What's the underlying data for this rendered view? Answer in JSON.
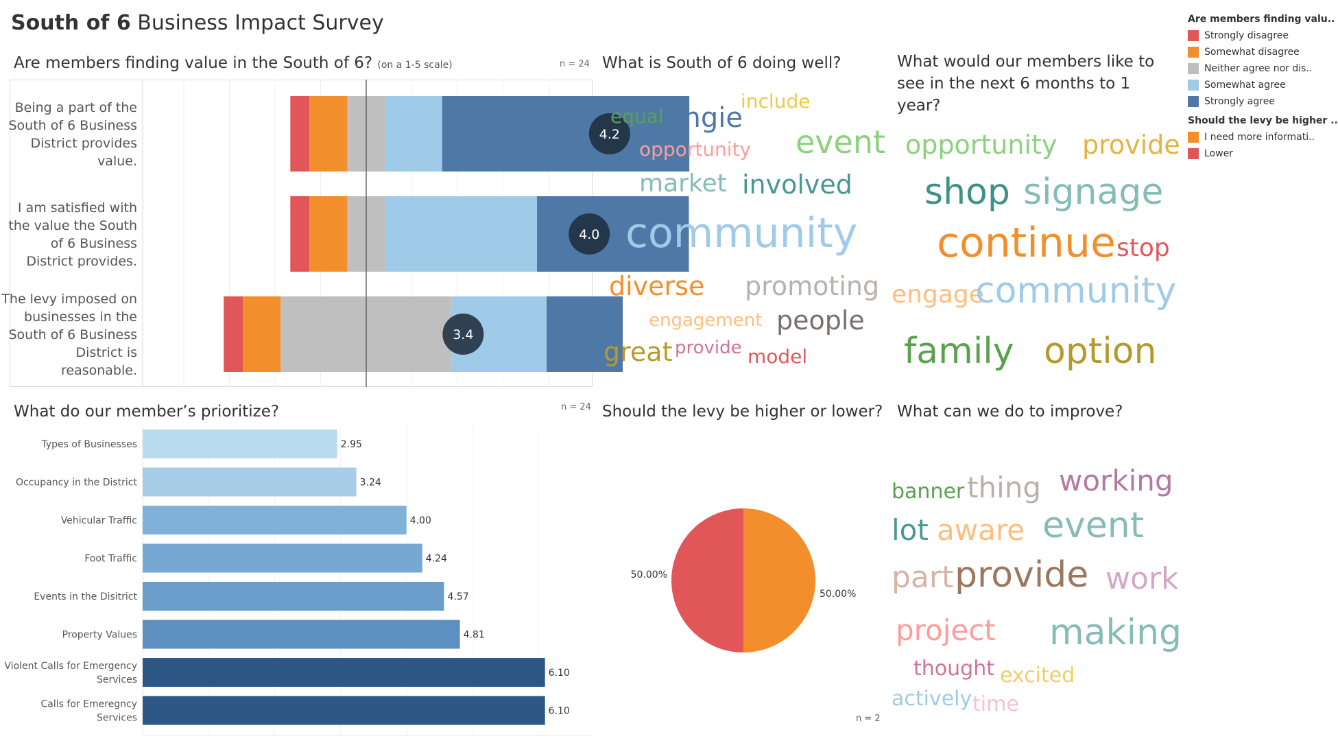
{
  "title": {
    "bold": "South of 6",
    "rest": " Business Impact Survey"
  },
  "colors": {
    "strongly_disagree": "#e15759",
    "somewhat_disagree": "#f28e2b",
    "neutral": "#bfbfbf",
    "somewhat_agree": "#a0cbe8",
    "strongly_agree": "#4e79a7",
    "avg_circle": "#1f2d3d"
  },
  "panels": {
    "value": {
      "title": "Are members finding value in the South of 6?",
      "subtitle": "(on a 1-5 scale)",
      "n": "n = 24"
    },
    "doing_well": {
      "title": "What is South of 6 doing well?"
    },
    "next_year": {
      "title": "What would our members like to see in the next 6 months to 1 year?"
    },
    "prioritize": {
      "title": "What do our member’s prioritize?",
      "n": "n = 24"
    },
    "levy": {
      "title": "Should the levy be higher or lower?",
      "n": "n = 2"
    },
    "improve": {
      "title": "What can we do to improve?"
    }
  },
  "legend": {
    "title1": "Are members finding valu..",
    "items1": [
      {
        "label": "Strongly disagree",
        "color": "#e15759"
      },
      {
        "label": "Somewhat disagree",
        "color": "#f28e2b"
      },
      {
        "label": "Neither agree nor dis..",
        "color": "#bfbfbf"
      },
      {
        "label": "Somewhat agree",
        "color": "#a0cbe8"
      },
      {
        "label": "Strongly agree",
        "color": "#4e79a7"
      }
    ],
    "title2": "Should the levy be higher ..",
    "items2": [
      {
        "label": "I need more informati..",
        "color": "#f28e2b"
      },
      {
        "label": "Lower",
        "color": "#e15759"
      }
    ]
  },
  "chart_data": [
    {
      "type": "bar",
      "subtype": "diverging-stacked",
      "title": "Are members finding value in the South of 6?",
      "categories": [
        "Being a part of the South of 6 Business District provides value.",
        "I am satisfied with the value the South of 6 Business District provides.",
        "The levy imposed on businesses in the South of 6 Business District is reasonable."
      ],
      "series": [
        {
          "name": "Strongly disagree",
          "values": [
            4.2,
            4.2,
            4.2
          ]
        },
        {
          "name": "Somewhat disagree",
          "values": [
            8.3,
            8.3,
            8.3
          ]
        },
        {
          "name": "Neither agree nor dis..",
          "values": [
            8.3,
            8.3,
            37.5
          ]
        },
        {
          "name": "Somewhat agree",
          "values": [
            12.5,
            33.3,
            20.8
          ]
        },
        {
          "name": "Strongly agree",
          "values": [
            54.2,
            33.3,
            16.7
          ]
        }
      ],
      "averages": [
        "4.2",
        "4.0",
        "3.4"
      ]
    },
    {
      "type": "bar",
      "orientation": "horizontal",
      "title": "What do our member’s prioritize?",
      "categories": [
        "Types of Businesses",
        "Occupancy in the District",
        "Vehicular Traffic",
        "Foot Traffic",
        "Events in the Disitrict",
        "Property Values",
        "Violent Calls for Emergency Services",
        "Calls for Emeregncy Services"
      ],
      "values": [
        2.95,
        3.24,
        4.0,
        4.24,
        4.57,
        4.81,
        6.1,
        6.1
      ],
      "labels": [
        "2.95",
        "3.24",
        "4.00",
        "4.24",
        "4.57",
        "4.81",
        "6.10",
        "6.10"
      ],
      "colors": [
        "#b9dbf0",
        "#a7cde9",
        "#80b1d8",
        "#77a8d3",
        "#6a9dca",
        "#5d90c1",
        "#2d5886",
        "#2d5886"
      ],
      "xlim": [
        0,
        6.8
      ]
    },
    {
      "type": "pie",
      "title": "Should the levy be higher or lower?",
      "slices": [
        {
          "name": "I need more informati..",
          "value": 50,
          "label": "50.00%",
          "color": "#f28e2b"
        },
        {
          "name": "Lower",
          "value": 50,
          "label": "50.00%",
          "color": "#e15759"
        }
      ]
    }
  ],
  "clouds": {
    "doing_well": [
      {
        "w": "equal",
        "c": "#59a14f",
        "s": 28
      },
      {
        "w": "angie",
        "c": "#4e79a7",
        "s": 40
      },
      {
        "w": "include",
        "c": "#edc948",
        "s": 28
      },
      {
        "w": "opportunity",
        "c": "#ff9d9a",
        "s": 28
      },
      {
        "w": "event",
        "c": "#8cd17d",
        "s": 46
      },
      {
        "w": "market",
        "c": "#86bcb6",
        "s": 36
      },
      {
        "w": "involved",
        "c": "#499894",
        "s": 38
      },
      {
        "w": "community",
        "c": "#a0cbe8",
        "s": 60
      },
      {
        "w": "diverse",
        "c": "#f28e2b",
        "s": 38
      },
      {
        "w": "promoting",
        "c": "#bab0ac",
        "s": 38
      },
      {
        "w": "engagement",
        "c": "#ffbe7d",
        "s": 26
      },
      {
        "w": "people",
        "c": "#79706e",
        "s": 38
      },
      {
        "w": "great",
        "c": "#b6992d",
        "s": 38
      },
      {
        "w": "provide",
        "c": "#d37295",
        "s": 26
      },
      {
        "w": "model",
        "c": "#e15759",
        "s": 28
      }
    ],
    "next_year": [
      {
        "w": "opportunity",
        "c": "#8cd17d",
        "s": 38
      },
      {
        "w": "provide",
        "c": "#e4b341",
        "s": 38
      },
      {
        "w": "shop",
        "c": "#3f8f8a",
        "s": 52
      },
      {
        "w": "signage",
        "c": "#86bcb6",
        "s": 52
      },
      {
        "w": "continue",
        "c": "#f28e2b",
        "s": 60
      },
      {
        "w": "stop",
        "c": "#e15759",
        "s": 36
      },
      {
        "w": "engage",
        "c": "#ffbe7d",
        "s": 36
      },
      {
        "w": "community",
        "c": "#a0cbe8",
        "s": 52
      },
      {
        "w": "family",
        "c": "#59a14f",
        "s": 52
      },
      {
        "w": "option",
        "c": "#b6992d",
        "s": 52
      }
    ],
    "improve": [
      {
        "w": "banner",
        "c": "#59a14f",
        "s": 30
      },
      {
        "w": "thing",
        "c": "#bab0ac",
        "s": 42
      },
      {
        "w": "working",
        "c": "#b07aa1",
        "s": 42
      },
      {
        "w": "lot",
        "c": "#499894",
        "s": 42
      },
      {
        "w": "aware",
        "c": "#ffbe7d",
        "s": 42
      },
      {
        "w": "event",
        "c": "#86bcb6",
        "s": 52
      },
      {
        "w": "part",
        "c": "#d7b5a6",
        "s": 44
      },
      {
        "w": "provide",
        "c": "#9d7660",
        "s": 52
      },
      {
        "w": "work",
        "c": "#d4a6c8",
        "s": 44
      },
      {
        "w": "project",
        "c": "#ff9d9a",
        "s": 42
      },
      {
        "w": "making",
        "c": "#86bcb6",
        "s": 52
      },
      {
        "w": "thought",
        "c": "#d37295",
        "s": 30
      },
      {
        "w": "excited",
        "c": "#f1ce63",
        "s": 30
      },
      {
        "w": "actively",
        "c": "#a0cbe8",
        "s": 30
      },
      {
        "w": "time",
        "c": "#fabfd2",
        "s": 30
      }
    ]
  }
}
